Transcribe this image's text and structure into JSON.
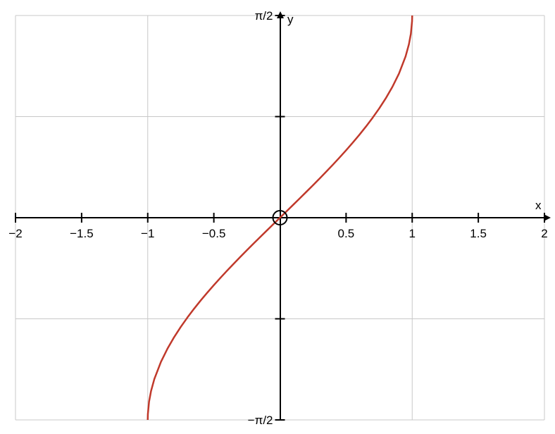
{
  "chart_data": {
    "type": "line",
    "title": "",
    "xlabel": "x",
    "ylabel": "y",
    "xlim": [
      -2,
      2
    ],
    "ylim": [
      -1.5708,
      1.5708
    ],
    "grid": true,
    "x_ticks": [
      -2,
      -1.5,
      -1,
      -0.5,
      0.5,
      1,
      1.5,
      2
    ],
    "x_tick_labels": [
      "−2",
      "−1.5",
      "−1",
      "−0.5",
      "0.5",
      "1",
      "1.5",
      "2"
    ],
    "y_ticks": [
      -1.5708,
      -0.7854,
      0.7854,
      1.5708
    ],
    "y_tick_labels": [
      "−π/2",
      "",
      "",
      "π/2"
    ],
    "x_grid": [
      -2,
      -1,
      0,
      1,
      2
    ],
    "y_grid": [
      -1.5708,
      -0.7854,
      0,
      0.7854,
      1.5708
    ],
    "series": [
      {
        "color": "#c0392b",
        "x": [
          -1,
          -0.999,
          -0.99,
          -0.975,
          -0.95,
          -0.9,
          -0.85,
          -0.8,
          -0.75,
          -0.7,
          -0.65,
          -0.6,
          -0.55,
          -0.5,
          -0.45,
          -0.4,
          -0.35,
          -0.3,
          -0.25,
          -0.2,
          -0.15,
          -0.1,
          -0.05,
          0,
          0.05,
          0.1,
          0.15,
          0.2,
          0.25,
          0.3,
          0.35,
          0.4,
          0.45,
          0.5,
          0.55,
          0.6,
          0.65,
          0.7,
          0.75,
          0.8,
          0.85,
          0.9,
          0.95,
          0.975,
          0.99,
          0.999,
          1
        ],
        "y": [
          -1.5708,
          -1.5261,
          -1.4293,
          -1.3467,
          -1.2532,
          -1.1198,
          -1.016,
          -0.9273,
          -0.8481,
          -0.7754,
          -0.7076,
          -0.6435,
          -0.5824,
          -0.5236,
          -0.4668,
          -0.4115,
          -0.3576,
          -0.3047,
          -0.2527,
          -0.2014,
          -0.1506,
          -0.1002,
          -0.05,
          0,
          0.05,
          0.1002,
          0.1506,
          0.2014,
          0.2527,
          0.3047,
          0.3576,
          0.4115,
          0.4668,
          0.5236,
          0.5824,
          0.6435,
          0.7076,
          0.7754,
          0.8481,
          0.9273,
          1.016,
          1.1198,
          1.2532,
          1.3467,
          1.4293,
          1.5261,
          1.5708
        ]
      }
    ],
    "annotations": [
      {
        "type": "open-circle",
        "x": 0,
        "y": 0
      }
    ]
  }
}
